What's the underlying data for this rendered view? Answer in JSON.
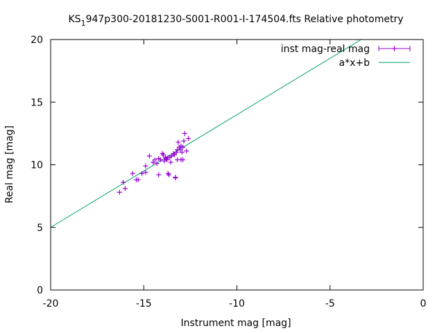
{
  "chart_data": {
    "type": "scatter",
    "title_prefix": "KS",
    "title_subscript": "1",
    "title_suffix": "947p300-20181230-S001-R001-I-174504.fts Relative photometry",
    "xlabel": "Instrument mag [mag]",
    "ylabel": "Real mag [mag]",
    "xlim": [
      -20,
      0
    ],
    "ylim": [
      0,
      20
    ],
    "x_ticks": [
      -20,
      -15,
      -10,
      -5,
      0
    ],
    "y_ticks": [
      0,
      5,
      10,
      15,
      20
    ],
    "grid": false,
    "legend_position": "top-right",
    "colors": {
      "points": "#9400d3",
      "fit": "#009e73"
    },
    "series": [
      {
        "name": "inst mag-real mag",
        "style": "points",
        "x": [
          -16.3,
          -16.1,
          -16.0,
          -15.6,
          -15.4,
          -15.3,
          -15.1,
          -14.9,
          -14.9,
          -14.7,
          -14.5,
          -14.4,
          -14.3,
          -14.2,
          -14.2,
          -14.1,
          -14.0,
          -13.95,
          -13.9,
          -13.85,
          -13.8,
          -13.75,
          -13.7,
          -13.7,
          -13.65,
          -13.6,
          -13.55,
          -13.5,
          -13.4,
          -13.35,
          -13.3,
          -13.3,
          -13.25,
          -13.2,
          -13.2,
          -13.15,
          -13.1,
          -13.05,
          -13.0,
          -13.0,
          -12.95,
          -12.9,
          -12.9,
          -12.85,
          -12.8,
          -12.7,
          -12.6
        ],
        "y": [
          7.8,
          8.6,
          8.1,
          9.3,
          8.8,
          8.8,
          9.3,
          9.4,
          9.9,
          10.7,
          10.2,
          10.4,
          10.1,
          9.2,
          10.5,
          10.4,
          10.9,
          10.8,
          10.3,
          10.6,
          10.5,
          10.4,
          10.6,
          9.3,
          9.2,
          10.6,
          10.2,
          10.7,
          10.9,
          10.8,
          9.0,
          8.95,
          11.0,
          11.2,
          10.4,
          11.8,
          11.4,
          11.2,
          10.4,
          11.5,
          11.0,
          11.4,
          10.4,
          11.9,
          12.5,
          11.1,
          12.1
        ]
      },
      {
        "name": "a*x+b",
        "style": "line",
        "slope": 0.9,
        "intercept": 23.0
      }
    ]
  }
}
